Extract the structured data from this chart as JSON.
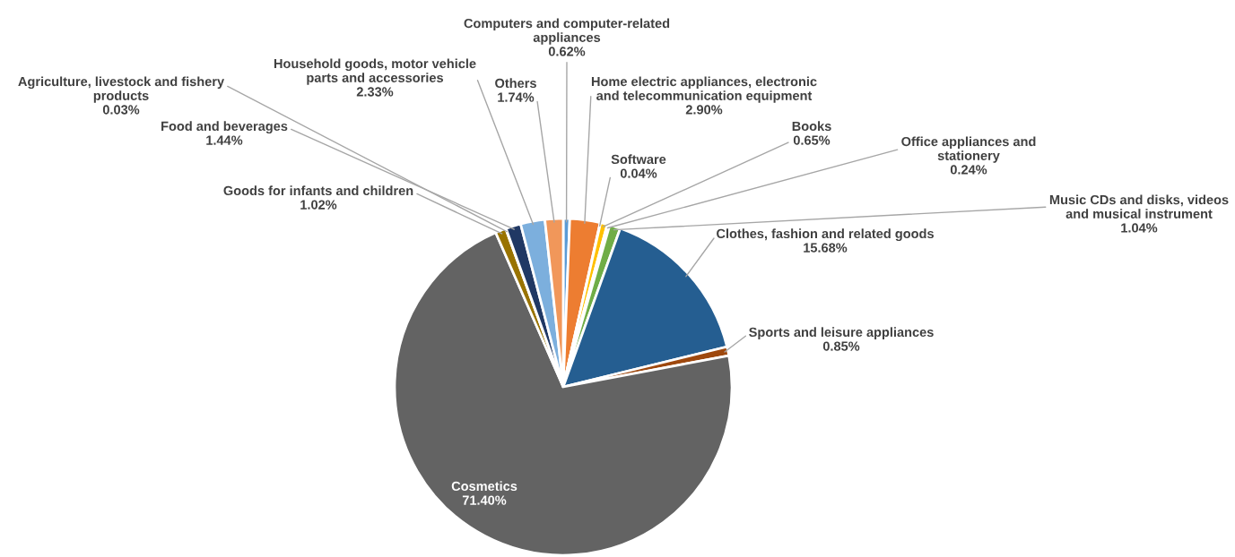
{
  "chart_data": {
    "type": "pie",
    "categories": [
      "Computers and computer-related\nappliances",
      "Home electric appliances, electronic\nand telecommunication equipment",
      "Software",
      "Books",
      "Office appliances and\nstationery",
      "Music CDs and disks, videos\nand musical instrument",
      "Clothes, fashion and related goods",
      "Sports and leisure appliances",
      "Cosmetics",
      "Goods for infants and children",
      "Agriculture, livestock and fishery\nproducts",
      "Food and beverages",
      "Household goods, motor vehicle\nparts and accessories",
      "Others"
    ],
    "values": [
      0.62,
      2.9,
      0.04,
      0.65,
      0.24,
      1.04,
      15.68,
      0.85,
      71.4,
      1.02,
      0.03,
      1.44,
      2.33,
      1.74
    ],
    "value_labels": [
      "0.62%",
      "2.90%",
      "0.04%",
      "0.65%",
      "0.24%",
      "1.04%",
      "15.68%",
      "0.85%",
      "71.40%",
      "1.02%",
      "0.03%",
      "1.44%",
      "2.33%",
      "1.74%"
    ],
    "colors": [
      "#5b9bd5",
      "#ed7d31",
      "#a5a5a5",
      "#ffc000",
      "#4472c4",
      "#70ad47",
      "#255e91",
      "#9e480e",
      "#636363",
      "#997300",
      "#264478",
      "#203864",
      "#7cafdd",
      "#f1975a"
    ]
  }
}
